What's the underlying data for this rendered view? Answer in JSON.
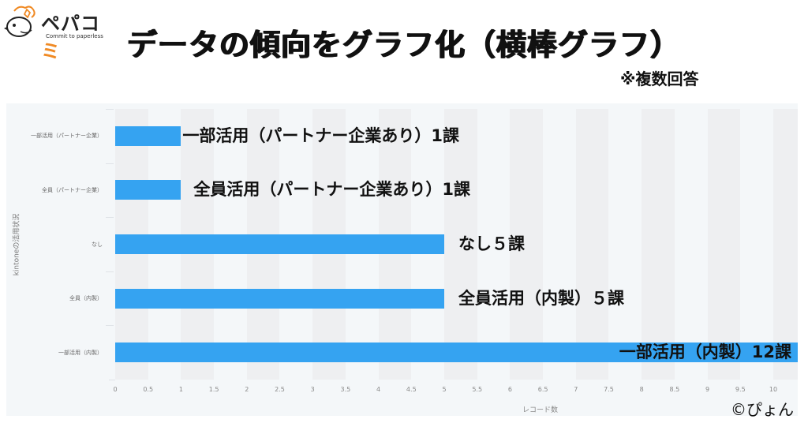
{
  "logo": {
    "brand": "ペパコ",
    "brand_tail": "ミ",
    "tagline": "Commit to paperless"
  },
  "title": "データの傾向をグラフ化（横棒グラフ）",
  "note": "※複数回答",
  "credit": "©ぴょん",
  "colors": {
    "bar": "#35a3f1",
    "panel_bg": "#f4f7f9",
    "band_bg": "#eeeff1"
  },
  "chart_data": {
    "type": "bar",
    "orientation": "horizontal",
    "title": "データの傾向をグラフ化（横棒グラフ）",
    "subtitle": "※複数回答",
    "xlabel": "レコード数",
    "ylabel": "kintoneの活用状況",
    "categories": [
      "一部活用（パートナー企業）",
      "全員（パートナー企業）",
      "なし",
      "全員（内製）",
      "一部活用（内製）"
    ],
    "values": [
      1,
      1,
      5,
      5,
      12
    ],
    "annotations": [
      "一部活用（パートナー企業あり）1課",
      "全員活用（パートナー企業あり）1課",
      "なし５課",
      "全員活用（内製）５課",
      "一部活用（内製）12課"
    ],
    "xlim": [
      0,
      10.4
    ],
    "xticks": [
      "0",
      "0.5",
      "1",
      "1.5",
      "2",
      "2.5",
      "3",
      "3.5",
      "4",
      "4.5",
      "5",
      "5.5",
      "6",
      "6.5",
      "7",
      "7.5",
      "8",
      "8.5",
      "9",
      "9.5",
      "10"
    ],
    "grid": "alternating vertical bands every 0.5",
    "legend": "none"
  }
}
